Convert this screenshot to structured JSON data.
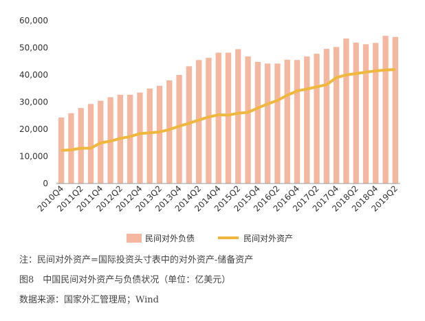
{
  "chart_data": {
    "type": "bar",
    "x_tick_labels": [
      "2010Q4",
      "2011Q2",
      "2011Q4",
      "2012Q2",
      "2012Q4",
      "2013Q2",
      "2013Q4",
      "2014Q2",
      "2014Q4",
      "2015Q2",
      "2015Q4",
      "2016Q2",
      "2016Q4",
      "2017Q2",
      "2017Q4",
      "2018Q2",
      "2018Q4",
      "2019Q2"
    ],
    "y_tick_labels": [
      "0",
      "10,000",
      "20,000",
      "30,000",
      "40,000",
      "50,000",
      "60,000"
    ],
    "ylim": [
      0,
      60000
    ],
    "grid": false,
    "legend_position": "bottom",
    "series": [
      {
        "name": "民间对外负债",
        "type": "bar",
        "color": "#f4b8a0",
        "values": [
          24300,
          25900,
          27800,
          29300,
          30500,
          31800,
          32700,
          32700,
          33500,
          35000,
          36000,
          38000,
          40000,
          43200,
          45500,
          46300,
          48200,
          48200,
          49500,
          46800,
          44800,
          44200,
          44200,
          45600,
          45500,
          46800,
          47800,
          49600,
          50300,
          53400,
          51900,
          51300,
          51800,
          54400,
          54000
        ]
      },
      {
        "name": "民间对外资产",
        "type": "line",
        "color": "#f0b73e",
        "values": [
          12200,
          12400,
          13000,
          13000,
          15000,
          15600,
          16600,
          17300,
          18400,
          18700,
          19000,
          19900,
          21100,
          22200,
          23400,
          24500,
          25300,
          25200,
          25900,
          26200,
          27800,
          29300,
          30600,
          32500,
          34100,
          34800,
          35600,
          36400,
          39000,
          40000,
          40500,
          41000,
          41500,
          41800,
          42000
        ]
      }
    ]
  },
  "notes": {
    "line1": "注：民间对外资产=国际投资头寸表中的对外资产-储备资产",
    "line2": "图8　中国民间对外资产与负债状况（单位：亿美元）",
    "line3": "数据来源：国家外汇管理局；Wind"
  }
}
